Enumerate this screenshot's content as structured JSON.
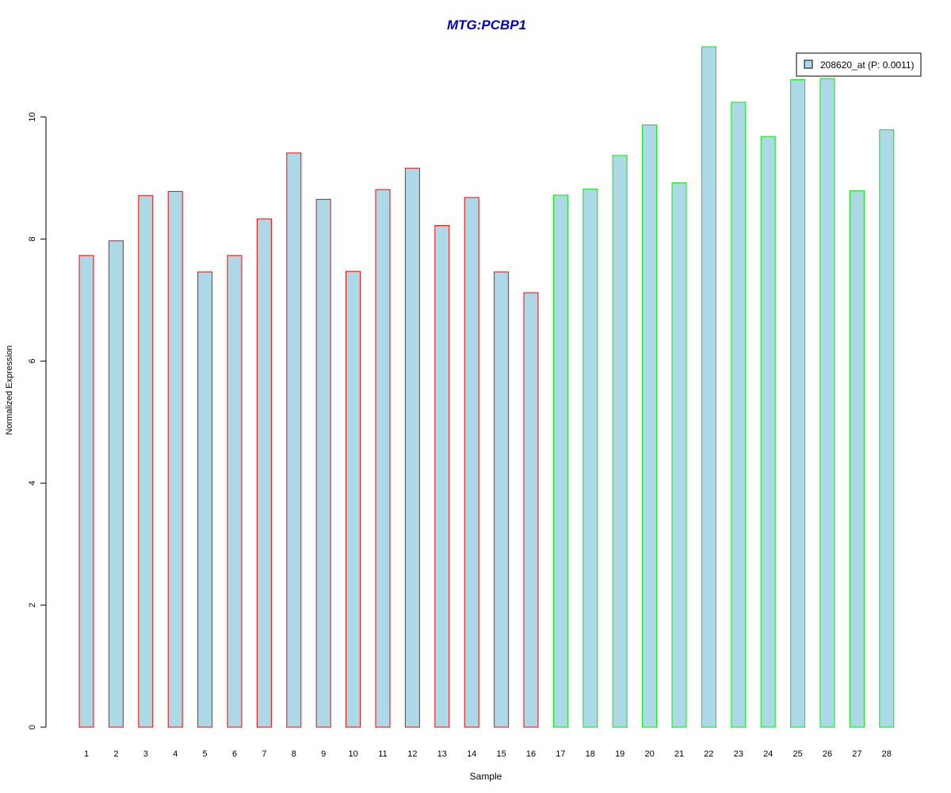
{
  "chart_data": {
    "type": "bar",
    "title": "MTG:PCBP1",
    "xlabel": "Sample",
    "ylabel": "Normalized Expression",
    "categories": [
      "1",
      "2",
      "3",
      "4",
      "5",
      "6",
      "7",
      "8",
      "9",
      "10",
      "11",
      "12",
      "13",
      "14",
      "15",
      "16",
      "17",
      "18",
      "19",
      "20",
      "21",
      "22",
      "23",
      "24",
      "25",
      "26",
      "27",
      "28"
    ],
    "series": [
      {
        "name": "208620_at (P: 0.0011)",
        "values": [
          7.73,
          7.97,
          8.71,
          8.78,
          7.46,
          7.73,
          8.33,
          9.41,
          8.65,
          7.47,
          8.81,
          9.16,
          8.22,
          8.68,
          7.46,
          7.12,
          8.72,
          8.82,
          9.37,
          9.87,
          8.92,
          11.15,
          10.24,
          9.68,
          10.61,
          10.63,
          8.79,
          9.79
        ]
      }
    ],
    "group_border_colors": [
      "#ff0000",
      "#ff0000",
      "#ff0000",
      "#ff0000",
      "#ff0000",
      "#ff0000",
      "#ff0000",
      "#ff0000",
      "#ff0000",
      "#ff0000",
      "#ff0000",
      "#ff0000",
      "#ff0000",
      "#ff0000",
      "#ff0000",
      "#ff0000",
      "#00ee00",
      "#00ee00",
      "#00ee00",
      "#00ee00",
      "#00ee00",
      "#00ee00",
      "#00ee00",
      "#00ee00",
      "#00ee00",
      "#00ee00",
      "#00ee00",
      "#00ee00"
    ],
    "ylim": [
      0,
      11.2
    ],
    "yticks": [
      0,
      2,
      4,
      6,
      8,
      10
    ],
    "grid": false,
    "legend_position": "top-right",
    "colors": {
      "bar_fill": "#add8e6",
      "title": "#0000cd",
      "legend_border": "#000000"
    }
  }
}
